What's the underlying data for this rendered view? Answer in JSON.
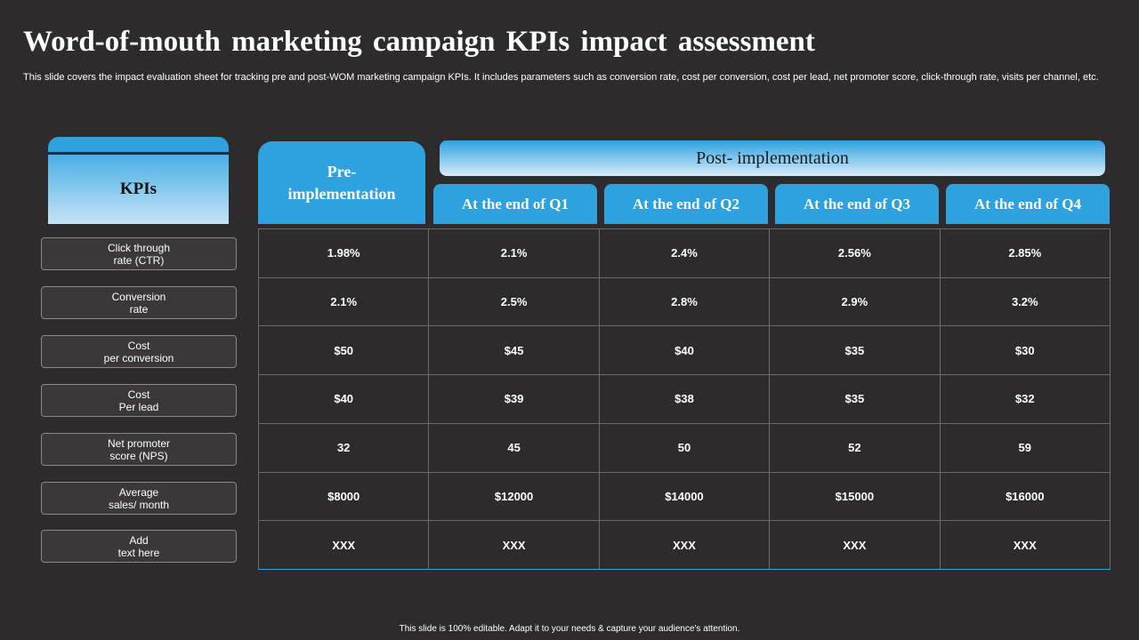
{
  "slide": {
    "title": "Word-of-mouth marketing campaign KPIs impact assessment",
    "subtitle": "This slide covers the impact evaluation sheet for tracking pre and post-WOM marketing campaign KPIs. It includes parameters such as conversion rate, cost per conversion, cost per lead, net promoter score, click-through rate, visits per channel, etc.",
    "footer": "This slide is 100% editable.  Adapt it to your needs & capture your audience's attention."
  },
  "table": {
    "kpi_header": "KPIs",
    "pre_header": "Pre-\nimplementation",
    "post_header": "Post- implementation",
    "quarters": [
      "At the end of Q1",
      "At the end of Q2",
      "At the end of Q3",
      "At the end of Q4"
    ],
    "kpis": [
      "Click through\nrate (CTR)",
      "Conversion\nrate",
      "Cost\nper conversion",
      "Cost\nPer lead",
      "Net promoter\nscore (NPS)",
      "Average\nsales/ month",
      "Add\ntext here"
    ],
    "rows": [
      [
        "1.98%",
        "2.1%",
        "2.4%",
        "2.56%",
        "2.85%"
      ],
      [
        "2.1%",
        "2.5%",
        "2.8%",
        "2.9%",
        "3.2%"
      ],
      [
        "$50",
        "$45",
        "$40",
        "$35",
        "$30"
      ],
      [
        "$40",
        "$39",
        "$38",
        "$35",
        "$32"
      ],
      [
        "32",
        "45",
        "50",
        "52",
        "59"
      ],
      [
        "$8000",
        "$12000",
        "$14000",
        "$15000",
        "$16000"
      ],
      [
        "XXX",
        "XXX",
        "XXX",
        "XXX",
        "XXX"
      ]
    ]
  },
  "colors": {
    "background": "#2d2b2c",
    "accent": "#2ea1df"
  }
}
